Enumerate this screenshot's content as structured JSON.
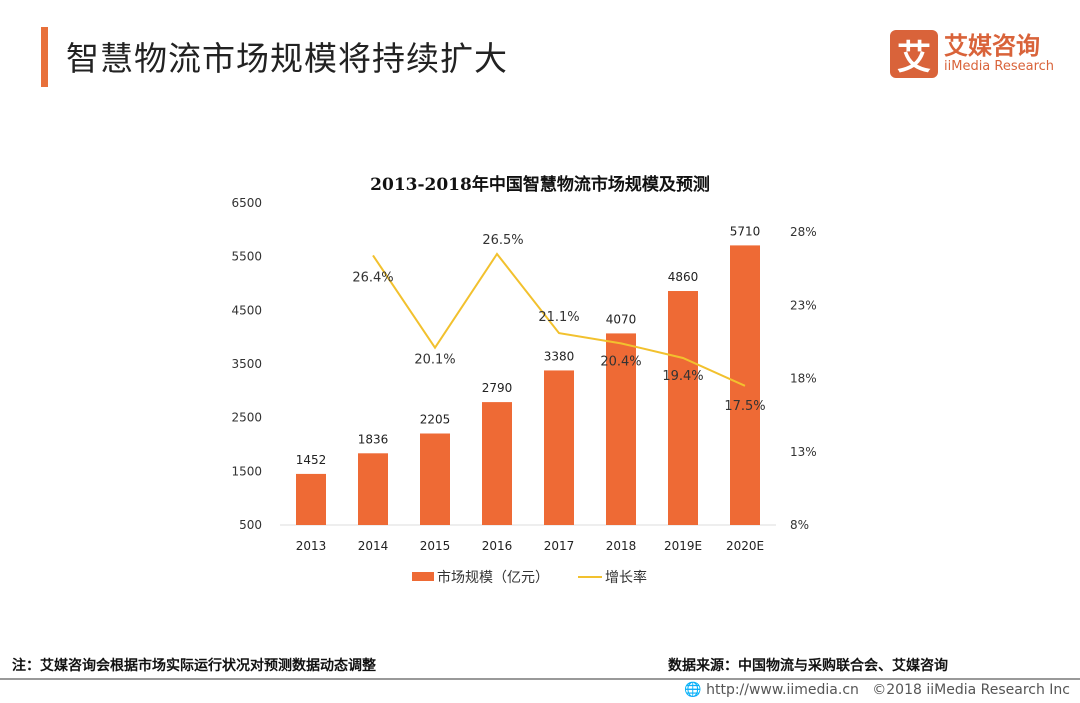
{
  "header": {
    "title": "智慧物流市场规模将持续扩大",
    "logo_cn": "艾媒咨询",
    "logo_en": "iiMedia Research",
    "logo_mark": "艾"
  },
  "colors": {
    "accent": "#E8703A",
    "bar": "#EE6A35",
    "line": "#F2C12E"
  },
  "chart_data": {
    "type": "bar+line",
    "title": "2013-2018年中国智慧物流市场规模及预测",
    "categories": [
      "2013",
      "2014",
      "2015",
      "2016",
      "2017",
      "2018",
      "2019E",
      "2020E"
    ],
    "series": [
      {
        "name": "市场规模（亿元）",
        "type": "bar",
        "axis": "left",
        "values": [
          1452,
          1836,
          2205,
          2790,
          3380,
          4070,
          4860,
          5710
        ],
        "labels": [
          "1452",
          "1836",
          "2205",
          "2790",
          "3380",
          "4070",
          "4860",
          "5710"
        ]
      },
      {
        "name": "增长率",
        "type": "line",
        "axis": "right",
        "values": [
          null,
          26.4,
          20.1,
          26.5,
          21.1,
          20.4,
          19.4,
          17.5
        ],
        "labels": [
          "",
          "26.4%",
          "20.1%",
          "26.5%",
          "21.1%",
          "20.4%",
          "19.4%",
          "17.5%"
        ]
      }
    ],
    "left_axis": {
      "ylim": [
        500,
        6500
      ],
      "ticks": [
        "500",
        "1500",
        "2500",
        "3500",
        "4500",
        "5500",
        "6500"
      ]
    },
    "right_axis": {
      "ylim": [
        8,
        28
      ],
      "ticks": [
        "8%",
        "13%",
        "18%",
        "23%",
        "28%"
      ]
    },
    "legend": "bottom",
    "grid": false
  },
  "footer": {
    "note": "注：艾媒咨询会根据市场实际运行状况对预测数据动态调整",
    "source": "数据来源：中国物流与采购联合会、艾媒咨询",
    "url": "http://www.iimedia.cn",
    "copyright": "©2018  iiMedia Research Inc"
  }
}
